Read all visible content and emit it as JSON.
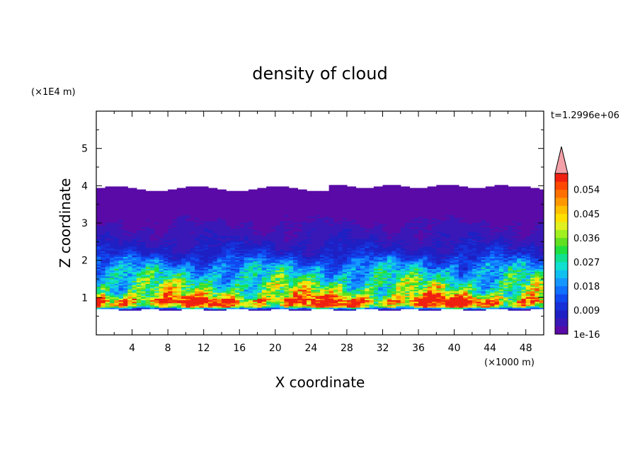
{
  "chart_data": {
    "type": "heatmap",
    "title": "density of cloud",
    "xlabel": "X coordinate",
    "ylabel": "Z coordinate",
    "x_unit": "(×1000 m)",
    "y_unit": "(×1E4 m)",
    "time_label": "t=1.2996e+06",
    "xlim": [
      0,
      50
    ],
    "ylim": [
      0,
      6
    ],
    "x_ticks": [
      "4",
      "8",
      "12",
      "16",
      "20",
      "24",
      "28",
      "32",
      "36",
      "40",
      "44",
      "48"
    ],
    "y_ticks": [
      "1",
      "2",
      "3",
      "4",
      "5"
    ],
    "colorbar": {
      "labels": [
        "1e-16",
        "0.009",
        "0.018",
        "0.027",
        "0.036",
        "0.045",
        "0.054"
      ],
      "levels": [
        1e-16,
        0.003,
        0.006,
        0.009,
        0.012,
        0.015,
        0.018,
        0.021,
        0.024,
        0.027,
        0.03,
        0.033,
        0.036,
        0.039,
        0.042,
        0.045,
        0.048,
        0.051,
        0.054,
        0.057,
        0.06
      ],
      "colors": [
        "#5a0aa6",
        "#3a18b8",
        "#1e20c4",
        "#1830d8",
        "#1048f0",
        "#1070ff",
        "#1498ff",
        "#10c0f0",
        "#10e0d0",
        "#10e090",
        "#20e040",
        "#60e020",
        "#a0f020",
        "#e0f020",
        "#ffe000",
        "#ffc000",
        "#ff9800",
        "#ff7000",
        "#ff4800",
        "#f02010"
      ],
      "extend_color": "#f4a0a8"
    },
    "profile": {
      "z": [
        0.68,
        0.72,
        0.76,
        0.8,
        0.86,
        0.92,
        0.98,
        1.05,
        1.15,
        1.25,
        1.35,
        1.45,
        1.6,
        1.75,
        1.9,
        2.05,
        2.2,
        2.4,
        2.6,
        2.8,
        3.0,
        3.3,
        3.6,
        3.9
      ],
      "density": [
        0.005,
        0.02,
        0.04,
        0.05,
        0.056,
        0.058,
        0.052,
        0.042,
        0.036,
        0.033,
        0.031,
        0.028,
        0.024,
        0.021,
        0.017,
        0.013,
        0.009,
        0.007,
        0.005,
        0.004,
        0.003,
        0.0015,
        0.0008,
        0.0004
      ]
    }
  }
}
